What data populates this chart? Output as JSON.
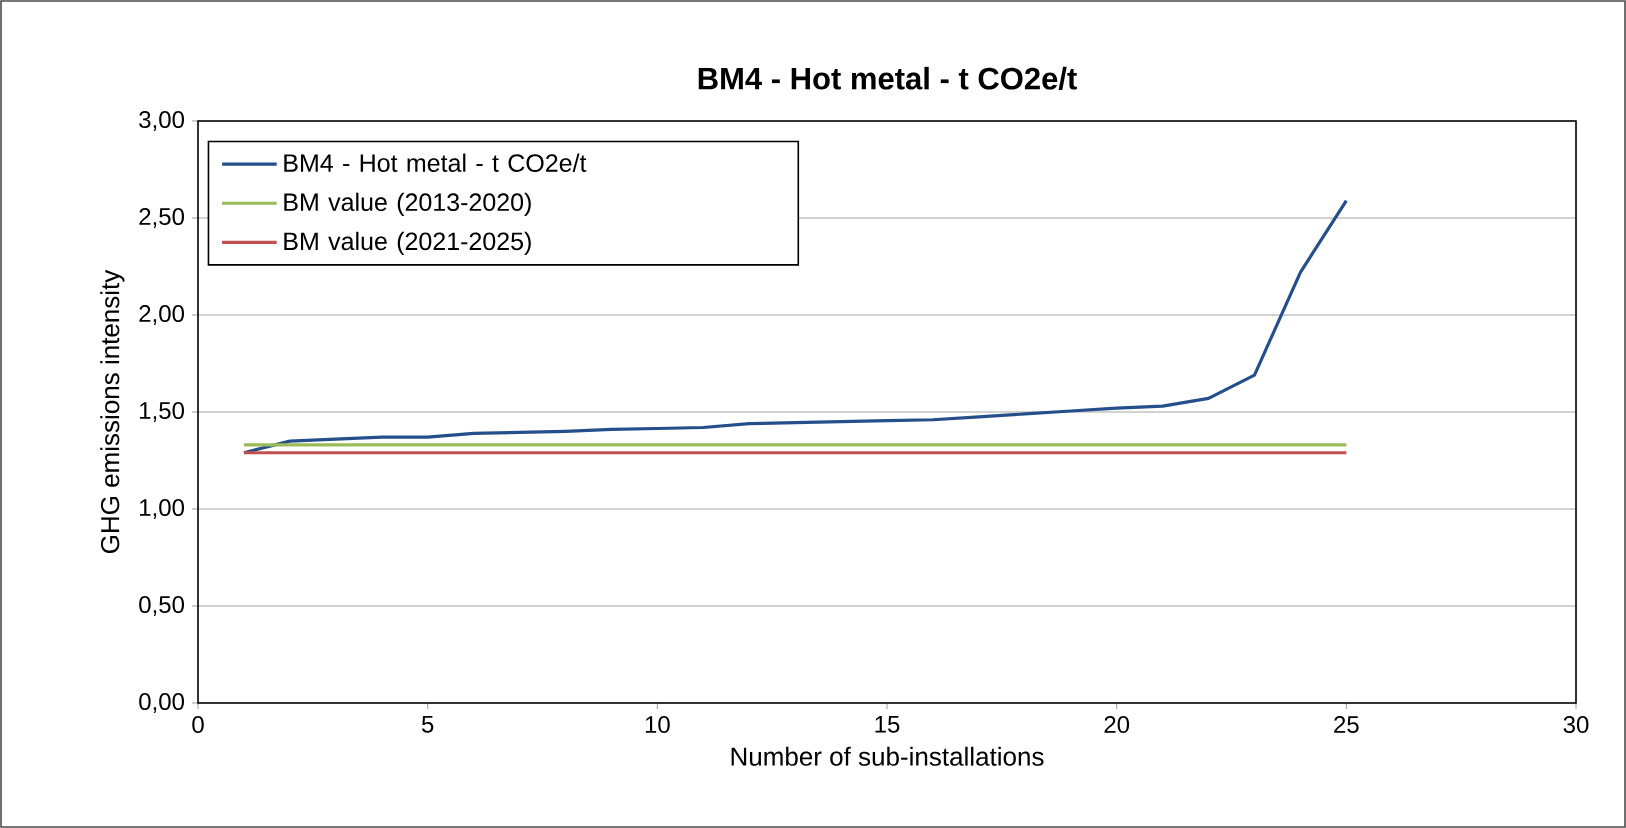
{
  "chart_data": {
    "type": "line",
    "title": "BM4 - Hot metal - t CO2e/t",
    "xlabel": "Number of sub-installations",
    "ylabel": "GHG emissions intensity",
    "series": [
      {
        "name": "BM4 - Hot metal - t CO2e/t",
        "color": "#244f8a",
        "x": [
          1,
          2,
          3,
          4,
          5,
          6,
          7,
          8,
          9,
          10,
          11,
          12,
          13,
          14,
          15,
          16,
          17,
          18,
          19,
          20,
          21,
          22,
          23,
          24,
          25
        ],
        "values": [
          1.29,
          1.35,
          1.36,
          1.37,
          1.37,
          1.39,
          1.395,
          1.4,
          1.41,
          1.415,
          1.42,
          1.44,
          1.445,
          1.45,
          1.455,
          1.46,
          1.475,
          1.49,
          1.505,
          1.52,
          1.53,
          1.57,
          1.69,
          2.22,
          2.59
        ]
      },
      {
        "name": "BM value (2013-2020)",
        "color": "#9bbb59",
        "x": [
          1,
          25
        ],
        "values": [
          1.33,
          1.33
        ]
      },
      {
        "name": "BM value (2021-2025)",
        "color": "#c0504d",
        "x": [
          1,
          25
        ],
        "values": [
          1.29,
          1.29
        ]
      }
    ],
    "xlim": [
      0,
      30
    ],
    "xticks": [
      0,
      5,
      10,
      15,
      20,
      25,
      30
    ],
    "ylim": [
      0,
      3
    ],
    "yticks": [
      {
        "value": 0,
        "label": "0,00"
      },
      {
        "value": 0.5,
        "label": "0,50"
      },
      {
        "value": 1,
        "label": "1,00"
      },
      {
        "value": 1.5,
        "label": "1,50"
      },
      {
        "value": 2,
        "label": "2,00"
      },
      {
        "value": 2.5,
        "label": "2,50"
      },
      {
        "value": 3,
        "label": "3,00"
      }
    ],
    "grid": "y",
    "legend": "top left",
    "marker": "none",
    "line_style": "solid"
  }
}
